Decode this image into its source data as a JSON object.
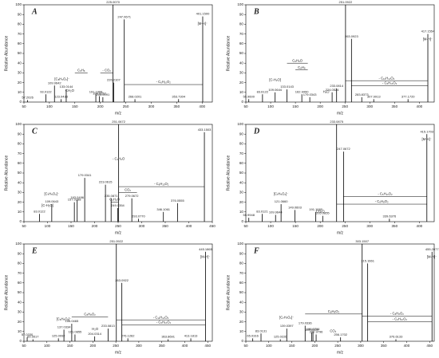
{
  "chart_data": [
    {
      "type": "bar",
      "title": "A",
      "x_label": "m/z",
      "y_label": "Relative Abundance",
      "color": "#000000",
      "xlim": [
        50,
        420
      ],
      "xticks": [
        50,
        100,
        150,
        200,
        250,
        300,
        350,
        400
      ],
      "ylim": [
        0,
        100
      ],
      "yticks": [
        0,
        10,
        20,
        30,
        40,
        50,
        60,
        70,
        80,
        90,
        100
      ],
      "x": [
        57.2026,
        93.0122,
        109.9642,
        123.0433,
        133.0144,
        191.1968,
        198.0252,
        205.0091,
        225.007,
        226.2107,
        247.0671,
        268.0201,
        353.7304,
        401.15
      ],
      "values": [
        2,
        8,
        17,
        3,
        13,
        8,
        6,
        5,
        100,
        20,
        85,
        3,
        3,
        88
      ],
      "peak_labels": [
        "57.2026",
        "93.0122",
        "109.9642",
        "123.0433",
        "133.0144",
        "191.1968",
        "198.0252",
        "205.0091",
        "225.0070",
        "226.2107",
        "247.0671",
        "268.0201",
        "353.7304",
        "401.1500"
      ],
      "annotations": [
        "[M-H]⁻",
        "- CO₂",
        "- C₆H₁₀O₂",
        "C₈H₈",
        "CH₂O",
        "[C₈H₅O₂]⁻"
      ]
    },
    {
      "type": "bar",
      "title": "B",
      "x_label": "m/z",
      "y_label": "Relative Abundance",
      "color": "#000000",
      "xlim": [
        50,
        430
      ],
      "xticks": [
        50,
        100,
        150,
        200,
        250,
        300,
        350,
        400
      ],
      "ylim": [
        0,
        100
      ],
      "yticks": [
        0,
        10,
        20,
        30,
        40,
        50,
        60,
        70,
        80,
        90,
        100
      ],
      "x": [
        55.96,
        83.6122,
        109.0644,
        133.0143,
        162.949,
        179.0343,
        224.0524,
        233.0814,
        251.0922,
        263.0923,
        283.8373,
        307.9913,
        377.172,
        417.1554
      ],
      "values": [
        3,
        8,
        10,
        13,
        8,
        5,
        10,
        14,
        100,
        65,
        5,
        3,
        3,
        70
      ],
      "peak_labels": [
        "55.9600",
        "83.6122",
        "109.0644",
        "133.0143",
        "162.9490",
        "179.0343",
        "224.0524",
        "233.0814",
        "251.0922",
        "263.0923",
        "283.8373",
        "307.9913",
        "377.1720",
        "417.1554"
      ],
      "annotations": [
        "[M-H]⁻",
        "- C₁₀H₁₂O₂",
        "- C₆H₁₀O₂",
        "C₈H₈O",
        "C₈H₈",
        "H₂O",
        "[C-H₂O]"
      ]
    },
    {
      "type": "bar",
      "title": "C",
      "x_label": "m/z",
      "y_label": "Relative Abundance",
      "color": "#000000",
      "xlim": [
        50,
        450
      ],
      "xticks": [
        50,
        100,
        150,
        200,
        250,
        300,
        350,
        400,
        450
      ],
      "ylim": [
        0,
        100
      ],
      "yticks": [
        0,
        10,
        20,
        30,
        40,
        50,
        60,
        70,
        80,
        90,
        100
      ],
      "x": [
        83.0122,
        109.0643,
        157.0388,
        163.0496,
        179.0341,
        223.0615,
        235.0871,
        249.0354,
        251.0672,
        279.0672,
        293.077,
        346.1061,
        376.0555,
        433.1503
      ],
      "values": [
        8,
        18,
        20,
        22,
        45,
        38,
        24,
        14,
        100,
        24,
        3,
        10,
        19,
        92
      ],
      "peak_labels": [
        "83.0122",
        "109.0643",
        "157.0388",
        "163.0496",
        "179.0341",
        "223.0615",
        "235.0871",
        "249.0354",
        "251.0672",
        "279.0672",
        "293.0770",
        "346.1061",
        "376.0555",
        "433.1503"
      ],
      "annotations": [
        "- C₄H₆O",
        "- C₆H₁₀O₂",
        "CO₂",
        "[C₇H₅O₂]⁻",
        "[C-H₂O]",
        "C₂H₂O"
      ]
    },
    {
      "type": "bar",
      "title": "D",
      "x_label": "m/z",
      "y_label": "Relative Abundance",
      "color": "#000000",
      "xlim": [
        50,
        430
      ],
      "xticks": [
        50,
        100,
        150,
        200,
        250,
        300,
        350,
        400
      ],
      "ylim": [
        0,
        100
      ],
      "yticks": [
        0,
        10,
        20,
        30,
        40,
        50,
        60,
        70,
        80,
        90,
        100
      ],
      "x": [
        55.9948,
        83.0121,
        109.9644,
        121.066,
        149.0603,
        191.108,
        205.0855,
        233.0875,
        247.0672,
        339.6376,
        415.1703
      ],
      "values": [
        4,
        8,
        7,
        18,
        12,
        10,
        6,
        100,
        72,
        3,
        90
      ],
      "peak_labels": [
        "55.9948",
        "83.0121",
        "109.9644",
        "121.0660",
        "149.0603",
        "191.1080",
        "205.0855",
        "233.0875",
        "247.0672",
        "339.6376",
        "415.1703"
      ],
      "annotations": [
        "[M-H]⁻",
        "- C₆H₁₀O₂",
        "- C₆H₈O₂",
        "[C₇H₅O₂]⁻",
        "CH₂O"
      ]
    },
    {
      "type": "bar",
      "title": "E",
      "x_label": "m/z",
      "y_label": "Relative Abundance",
      "color": "#000000",
      "xlim": [
        50,
        460
      ],
      "xticks": [
        50,
        100,
        150,
        200,
        250,
        300,
        350,
        400,
        450
      ],
      "ylim": [
        0,
        100
      ],
      "yticks": [
        0,
        10,
        20,
        30,
        40,
        50,
        60,
        70,
        80,
        90,
        100
      ],
      "x": [
        57.033,
        69.5517,
        125.0092,
        137.0334,
        154.0465,
        161.0855,
        204.0314,
        233.0813,
        251.0922,
        263.0922,
        276.1262,
        363.8691,
        413.1813,
        445.1865
      ],
      "values": [
        4,
        2,
        3,
        12,
        18,
        7,
        5,
        13,
        100,
        60,
        3,
        2,
        3,
        92
      ],
      "peak_labels": [
        "57.0330",
        "69.5517",
        "125.0092",
        "137.0334",
        "154.0465",
        "161.0855",
        "204.0314",
        "233.0813",
        "251.0922",
        "263.0922",
        "276.1262",
        "363.8691",
        "413.1813",
        "445.1865"
      ],
      "annotations": [
        "[M-H]⁻",
        "- C₁₁H₁₄O₂",
        "- C₆H₁₀O₂",
        "C₈H₈O₂",
        "H₂O",
        "[C₈H₅O₂]⁻"
      ]
    },
    {
      "type": "bar",
      "title": "F",
      "x_label": "m/z",
      "y_label": "Relative Abundance",
      "color": "#000000",
      "xlim": [
        50,
        460
      ],
      "xticks": [
        50,
        100,
        150,
        200,
        250,
        300,
        350,
        400,
        450
      ],
      "ylim": [
        0,
        100
      ],
      "yticks": [
        0,
        10,
        20,
        30,
        40,
        50,
        60,
        70,
        80,
        90,
        100
      ],
      "x": [
        65.0316,
        83.0131,
        125.0226,
        139.0397,
        179.0336,
        193.0339,
        196.0706,
        202.9796,
        256.1702,
        303.1507,
        315.1661,
        376.6133,
        455.2077
      ],
      "values": [
        3,
        8,
        2,
        13,
        16,
        9,
        10,
        7,
        4,
        100,
        80,
        2,
        92
      ],
      "peak_labels": [
        "65.0316",
        "83.0131",
        "125.0226",
        "139.0397",
        "179.0336",
        "193.0339",
        "196.0706",
        "202.9796",
        "256.1702",
        "303.1507",
        "315.1661",
        "376.6133",
        "455.2077"
      ],
      "annotations": [
        "[M-H]⁻",
        "- C₈H₈O₂",
        "- C₆H₁₀O₂",
        "C₈H₈O₂",
        "CO₂",
        "[C₇H₇O₂]⁻"
      ]
    }
  ]
}
